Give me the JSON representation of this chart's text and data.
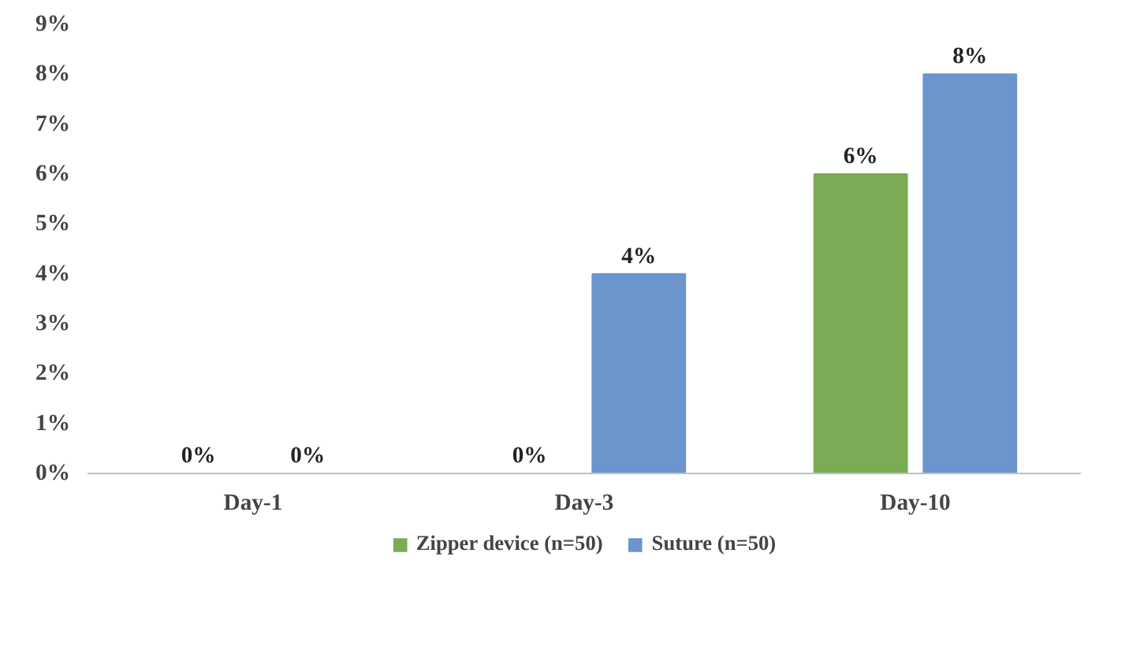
{
  "chart_data": {
    "type": "bar",
    "categories": [
      "Day-1",
      "Day-3",
      "Day-10"
    ],
    "series": [
      {
        "name": "Zipper device (n=50)",
        "color": "#7aab55",
        "values": [
          0,
          0,
          6
        ],
        "value_labels": [
          "0%",
          "0%",
          "6%"
        ]
      },
      {
        "name": "Suture (n=50)",
        "color": "#6b95cc",
        "values": [
          0,
          4,
          8
        ],
        "value_labels": [
          "0%",
          "4%",
          "8%"
        ]
      }
    ],
    "ylim": [
      0,
      9
    ],
    "yticks": [
      {
        "value": 0,
        "label": "0%"
      },
      {
        "value": 1,
        "label": "1%"
      },
      {
        "value": 2,
        "label": "2%"
      },
      {
        "value": 3,
        "label": "3%"
      },
      {
        "value": 4,
        "label": "4%"
      },
      {
        "value": 5,
        "label": "5%"
      },
      {
        "value": 6,
        "label": "6%"
      },
      {
        "value": 7,
        "label": "7%"
      },
      {
        "value": 8,
        "label": "8%"
      },
      {
        "value": 9,
        "label": "9%"
      }
    ],
    "grid": false,
    "legend": "bottom"
  }
}
